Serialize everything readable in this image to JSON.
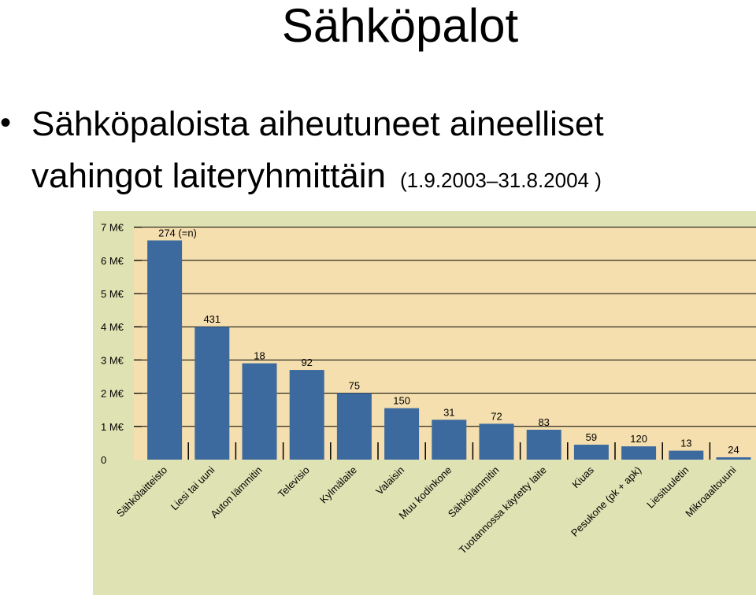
{
  "slide": {
    "title": "Sähköpalot",
    "bullet_line1": "Sähköpaloista aiheutuneet aineelliset",
    "bullet_line2": "vahingot laiteryhmittäin",
    "date_range": "(1.9.2003–31.8.2004 )"
  },
  "colors": {
    "panel_bg": "#dfe2b2",
    "plot_bg": "#f5dfae",
    "bar": "#3c6a9f",
    "grid": "#000000"
  },
  "chart_data": {
    "type": "bar",
    "title": "",
    "xlabel": "",
    "ylabel": "",
    "ylim": [
      0,
      7
    ],
    "y_ticks": [
      0,
      1,
      2,
      3,
      4,
      5,
      6,
      7
    ],
    "y_tick_labels": [
      "0",
      "1 M€",
      "2 M€",
      "3 M€",
      "4 M€",
      "5 M€",
      "6 M€",
      "7 M€"
    ],
    "categories": [
      "Sähkölaitteisto",
      "Liesi tai uuni",
      "Auton lämmitin",
      "Televisio",
      "Kylmälaite",
      "Valaisin",
      "Muu kodinkone",
      "Sähkölämmitin",
      "Tuotannossa käytetty laite",
      "Kiuas",
      "Pesukone (pk + apk)",
      "Liesituuletin",
      "Mikroaaltouuni"
    ],
    "values": [
      6.6,
      4.0,
      2.9,
      2.7,
      2.0,
      1.55,
      1.2,
      1.08,
      0.9,
      0.45,
      0.4,
      0.27,
      0.07
    ],
    "data_labels": [
      "274 (=n)",
      "431",
      "18",
      "92",
      "75",
      "150",
      "31",
      "72",
      "83",
      "59",
      "120",
      "13",
      "24"
    ],
    "grid": true,
    "legend": "none"
  }
}
